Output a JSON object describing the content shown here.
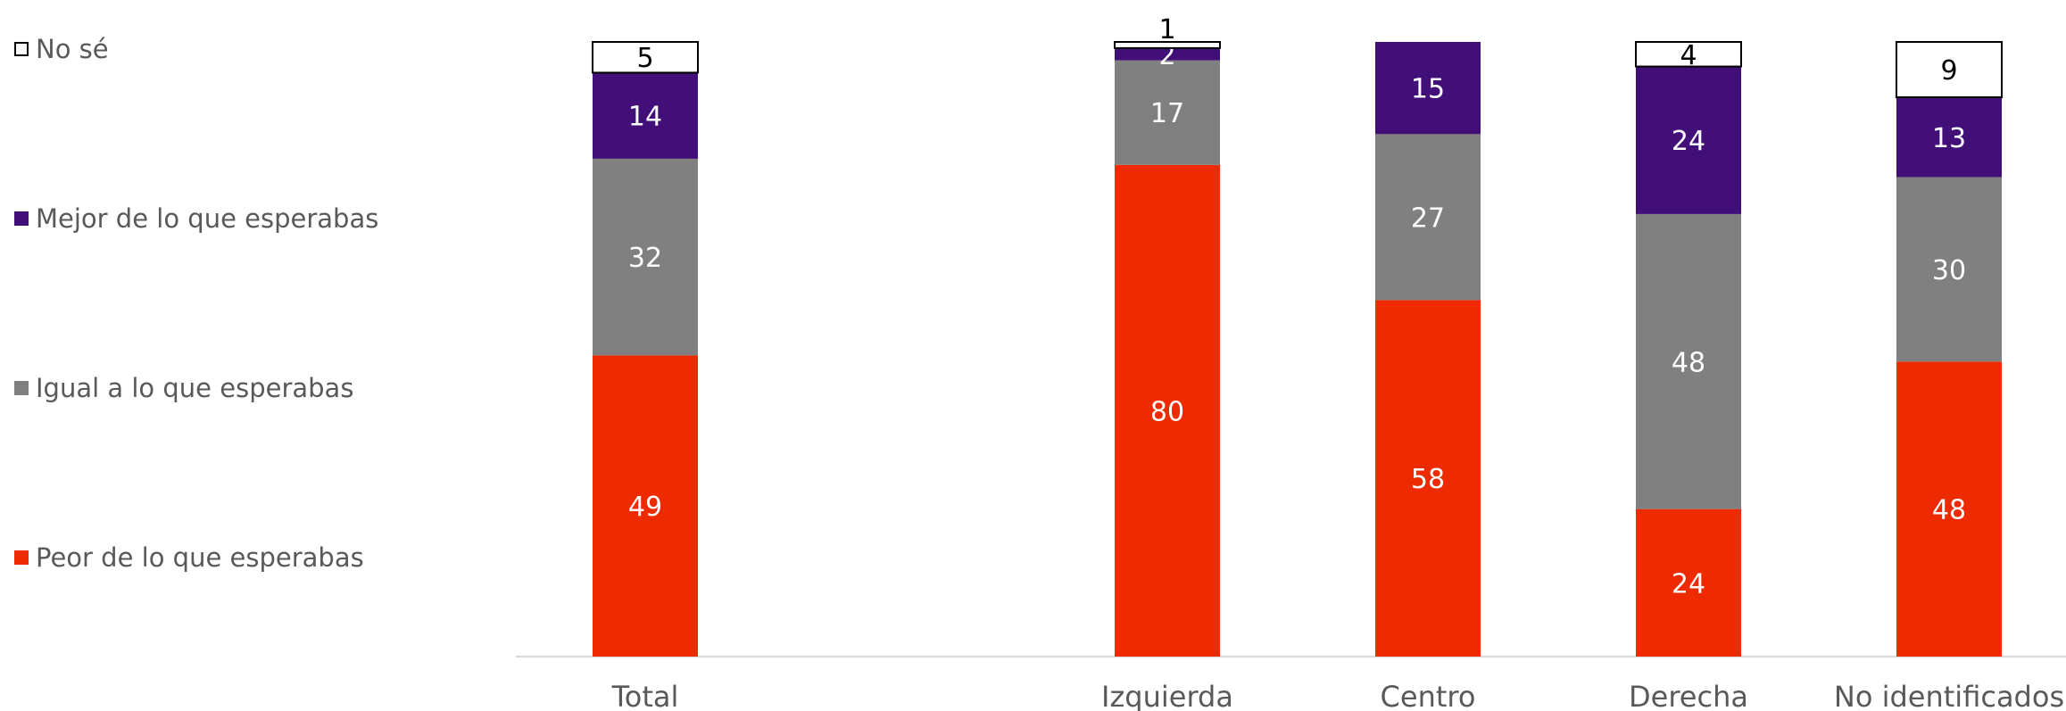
{
  "chart_data": {
    "type": "bar",
    "stacked": true,
    "categories": [
      "Total",
      "Izquierda",
      "Centro",
      "Derecha",
      "No identificados"
    ],
    "series": [
      {
        "name": "Peor de lo que esperabas",
        "color": "#EE2A00",
        "values": [
          49,
          80,
          58,
          24,
          48
        ]
      },
      {
        "name": "Igual a lo que esperabas",
        "color": "#808080",
        "values": [
          32,
          17,
          27,
          48,
          30
        ]
      },
      {
        "name": "Mejor de lo que esperabas",
        "color": "#420E78",
        "values": [
          14,
          2,
          15,
          24,
          13
        ]
      },
      {
        "name": "No sé",
        "color": "#FFFFFF",
        "values": [
          5,
          1,
          null,
          4,
          9
        ]
      }
    ],
    "ylim": [
      0,
      100
    ],
    "legend_position": "left",
    "grid": false
  },
  "legend": {
    "items": [
      {
        "label": "No sé",
        "color": "#FFFFFF",
        "border": "#000000"
      },
      {
        "label": "Mejor de lo que esperabas",
        "color": "#420E78",
        "border": "#420E78"
      },
      {
        "label": "Igual a lo que esperabas",
        "color": "#808080",
        "border": "#808080"
      },
      {
        "label": "Peor de lo que esperabas",
        "color": "#EE2A00",
        "border": "#EE2A00"
      }
    ]
  }
}
